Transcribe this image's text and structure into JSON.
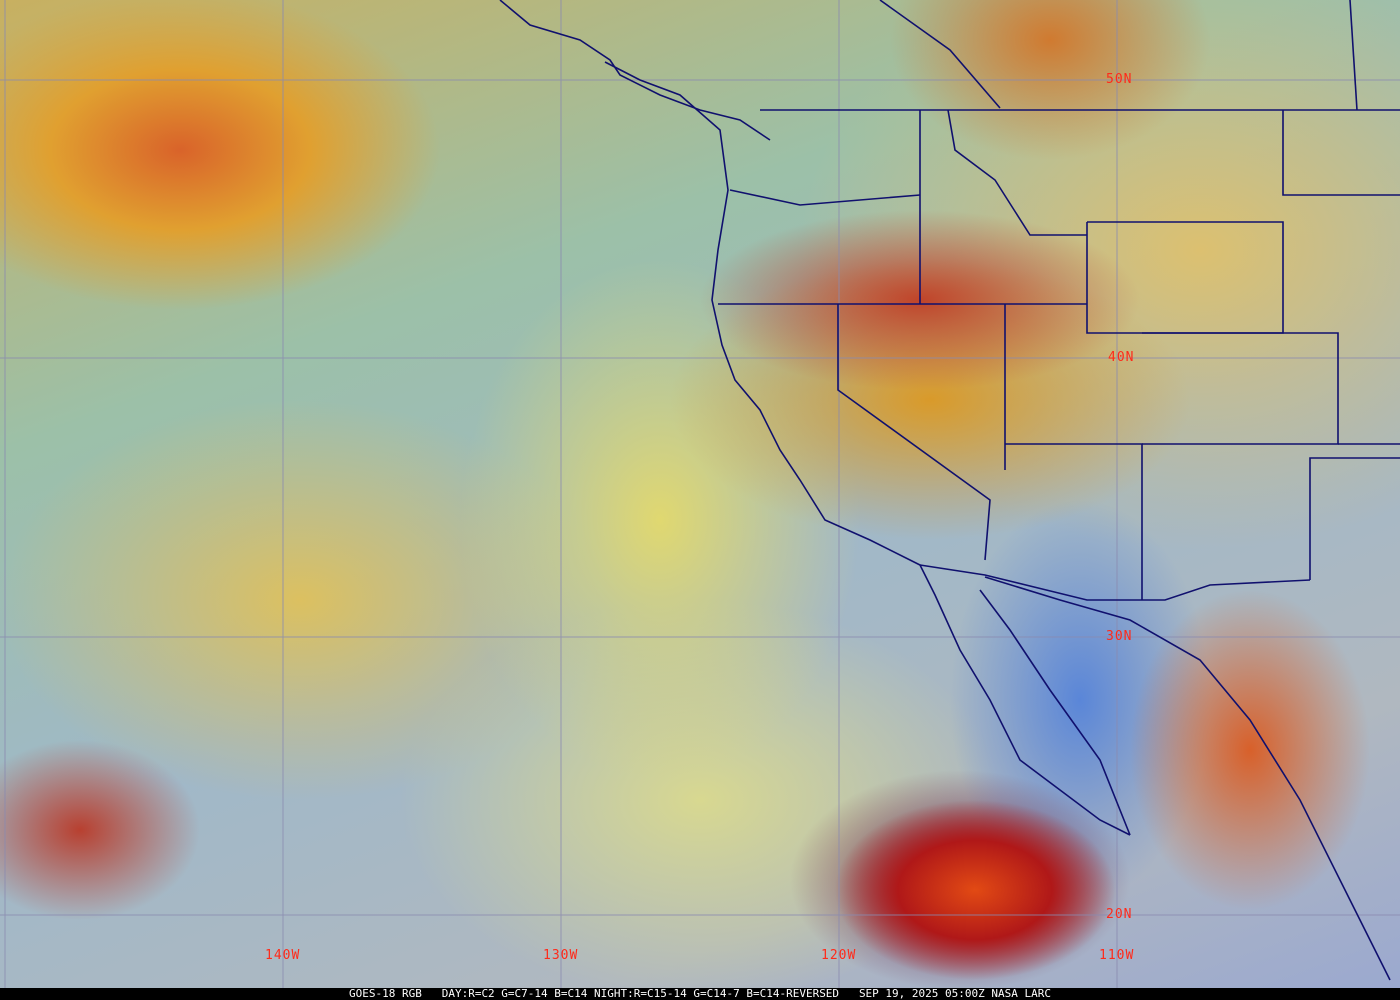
{
  "image": {
    "type": "satellite-rgb-composite",
    "grid_color": "#8a8ab0",
    "border_color": "#10106e",
    "label_color": "#ff2a1a"
  },
  "latitude_labels": [
    "50N",
    "40N",
    "30N",
    "20N"
  ],
  "longitude_labels": [
    "140W",
    "130W",
    "120W",
    "110W"
  ],
  "caption": {
    "product": "GOES-18 RGB",
    "recipe": "DAY:R=C2 G=C7-14 B=C14 NIGHT:R=C15-14 G=C14-7 B=C14-REVERSED",
    "timestamp": "SEP 19, 2025 05:00Z",
    "credit": "NASA LARC"
  }
}
